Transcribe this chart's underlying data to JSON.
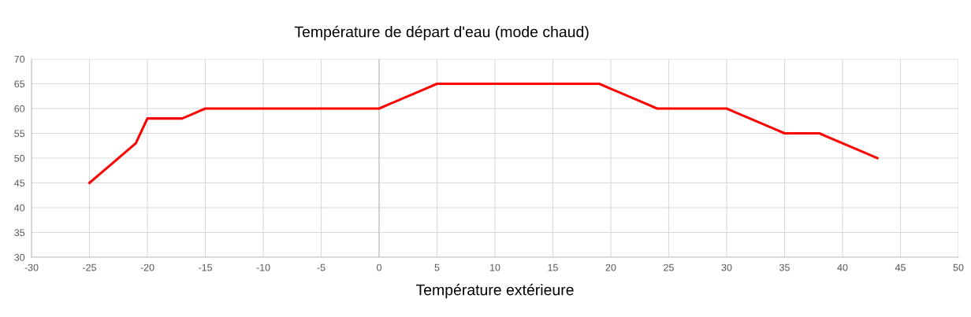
{
  "chart_data": {
    "type": "line",
    "title": "Température de départ d'eau (mode chaud)",
    "xlabel": "Température extérieure",
    "x": [
      -25,
      -24,
      -23,
      -21,
      -20,
      -17,
      -16,
      -15,
      0,
      1,
      3,
      4,
      5,
      19,
      20,
      21,
      23,
      24,
      30,
      31,
      33,
      34,
      35,
      38,
      39,
      40,
      42,
      43
    ],
    "series": [
      {
        "color": "#ff0000",
        "values": [
          45,
          47,
          49,
          53,
          58,
          58,
          59,
          60,
          60,
          61,
          63,
          64,
          65,
          65,
          64,
          63,
          61,
          60,
          60,
          59,
          57,
          56,
          55,
          55,
          54,
          53,
          51,
          50
        ]
      }
    ],
    "xlim": [
      -30,
      50
    ],
    "xticks": [
      -30,
      -25,
      -20,
      -15,
      -10,
      -5,
      0,
      5,
      10,
      15,
      20,
      25,
      30,
      35,
      40,
      45,
      50
    ],
    "ylim": [
      30,
      70
    ],
    "yticks": [
      30,
      35,
      40,
      45,
      50,
      55,
      60,
      65,
      70
    ],
    "grid": true,
    "marker": "none",
    "line_style": "solid",
    "legend": false
  }
}
